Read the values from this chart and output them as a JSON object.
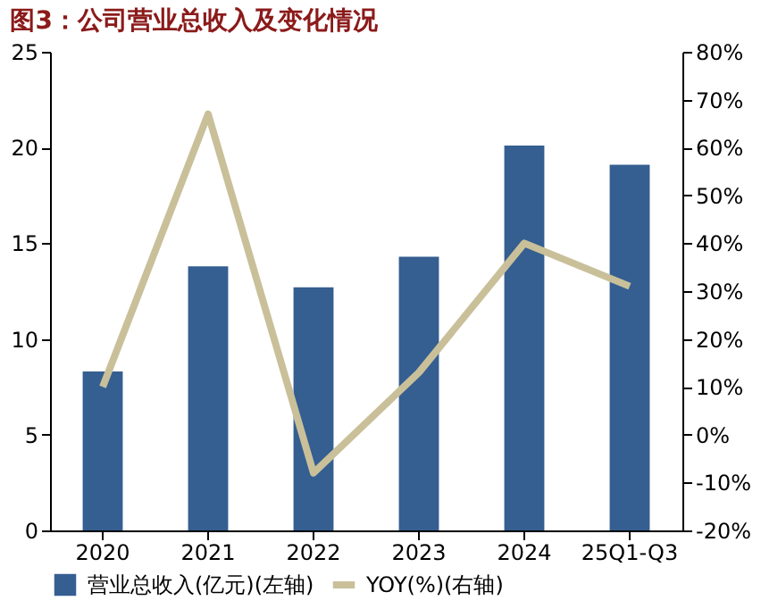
{
  "chart_data": {
    "type": "bar",
    "title": "图3：公司营业总收入及变化情况",
    "categories": [
      "2020",
      "2021",
      "2022",
      "2023",
      "2024",
      "25Q1-Q3"
    ],
    "series": [
      {
        "name": "营业总收入(亿元)(左轴)",
        "color": "#355e91",
        "values": [
          8.3,
          13.8,
          12.7,
          14.3,
          20.1,
          19.1
        ]
      },
      {
        "name": "YOY(%)(右轴)",
        "type": "line",
        "axis": "y2",
        "color": "#c9c09a",
        "values": [
          10,
          67,
          -8,
          13,
          40,
          31
        ]
      }
    ],
    "ylim": [
      0,
      25
    ],
    "yticks": [
      0,
      5,
      10,
      15,
      20,
      25
    ],
    "y2lim": [
      -20,
      80
    ],
    "y2ticks": [
      {
        "value": -20,
        "label": "-20%"
      },
      {
        "value": -10,
        "label": "-10%"
      },
      {
        "value": 0,
        "label": "0%"
      },
      {
        "value": 10,
        "label": "10%"
      },
      {
        "value": 20,
        "label": "20%"
      },
      {
        "value": 30,
        "label": "30%"
      },
      {
        "value": 40,
        "label": "40%"
      },
      {
        "value": 50,
        "label": "50%"
      },
      {
        "value": 60,
        "label": "60%"
      },
      {
        "value": 70,
        "label": "70%"
      },
      {
        "value": 80,
        "label": "80%"
      }
    ],
    "grid": false,
    "legend": "bottom"
  }
}
